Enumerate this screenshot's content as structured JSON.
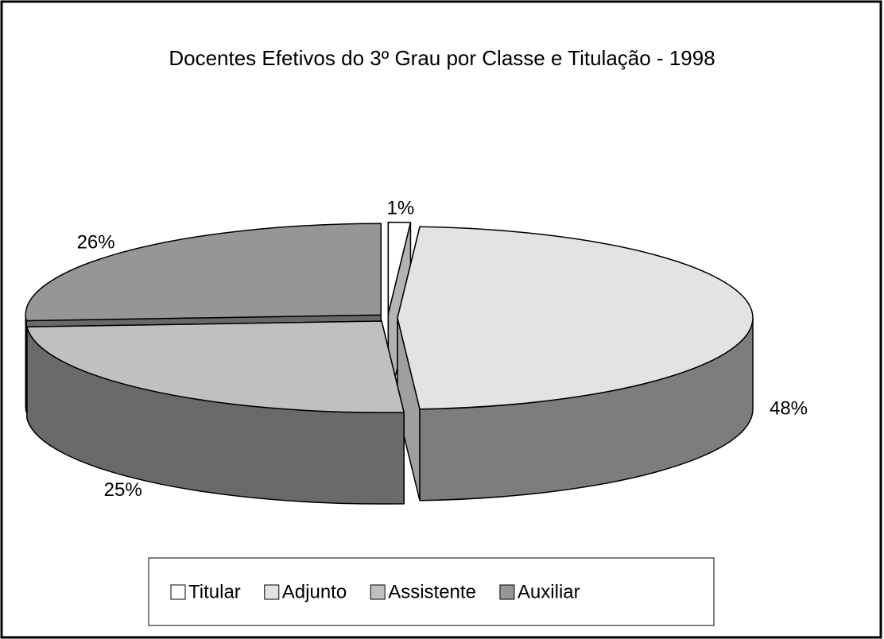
{
  "chart_data": {
    "type": "pie",
    "title": "Docentes Efetivos do 3º Grau por Classe e Titulação  - 1998",
    "categories": [
      "Titular",
      "Adjunto",
      "Assistente",
      "Auxiliar"
    ],
    "values": [
      1,
      48,
      25,
      26
    ],
    "value_labels": [
      "1%",
      "48%",
      "25%",
      "26%"
    ],
    "colors": [
      "#ffffff",
      "#e3e3e3",
      "#c0c0c0",
      "#969696"
    ],
    "legend": "bottom"
  }
}
